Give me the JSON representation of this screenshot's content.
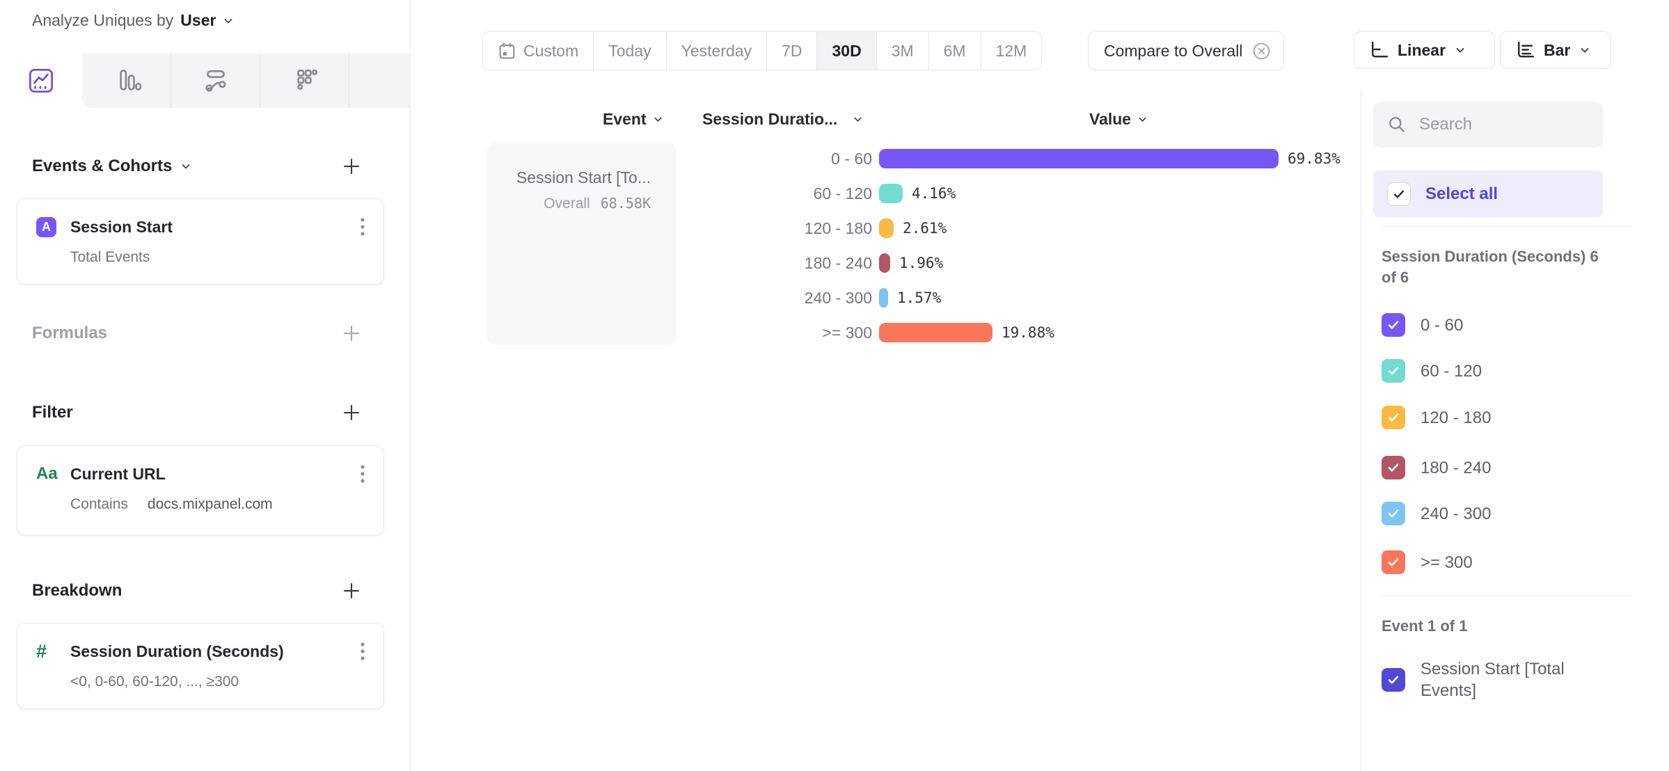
{
  "header": {
    "prefix": "Analyze Uniques by",
    "entity": "User"
  },
  "builder": {
    "events": {
      "title": "Events & Cohorts",
      "item": {
        "badge": "A",
        "title": "Session Start",
        "subtitle": "Total Events"
      }
    },
    "formulas": {
      "title": "Formulas"
    },
    "filter": {
      "title": "Filter",
      "item": {
        "badge": "Aa",
        "title": "Current URL",
        "operator": "Contains",
        "value": "docs.mixpanel.com"
      }
    },
    "breakdown": {
      "title": "Breakdown",
      "item": {
        "badge": "#",
        "title": "Session Duration (Seconds)",
        "subtitle": "<0, 0-60, 60-120, ..., ≥300"
      }
    }
  },
  "toolbar": {
    "dates": {
      "custom": "Custom",
      "today": "Today",
      "yesterday": "Yesterday",
      "d7": "7D",
      "d30": "30D",
      "m3": "3M",
      "m6": "6M",
      "m12": "12M",
      "selected": "30D"
    },
    "compare_label": "Compare to Overall",
    "scale_label": "Linear",
    "chart_type_label": "Bar"
  },
  "table": {
    "col_event": "Event",
    "col_breakdown": "Session Duratio...",
    "col_value": "Value",
    "event_cell": {
      "title": "Session Start [To...",
      "overall_label": "Overall",
      "overall_value": "68.58K"
    }
  },
  "chart_data": {
    "type": "bar",
    "orientation": "horizontal",
    "series_name": "Session Start [Total Events]",
    "overall_value": "68.58K",
    "categories": [
      "0 - 60",
      "60 - 120",
      "120 - 180",
      "180 - 240",
      "240 - 300",
      ">= 300"
    ],
    "values": [
      69.83,
      4.16,
      2.61,
      1.96,
      1.57,
      19.88
    ],
    "value_labels": [
      "69.83%",
      "4.16%",
      "2.61%",
      "1.96%",
      "1.57%",
      "19.88%"
    ],
    "colors": [
      "#7856F6",
      "#73DCD1",
      "#F6BA45",
      "#B4556A",
      "#7EC4F2",
      "#F8775A"
    ],
    "unit": "%",
    "xlim": [
      0,
      70
    ],
    "grid": false,
    "legend_position": "right"
  },
  "legend": {
    "search_placeholder": "Search",
    "select_all_label": "Select all",
    "group1": {
      "header": "Session Duration (Seconds) 6 of 6",
      "items": [
        {
          "label": "0 - 60",
          "color": "#7856F6",
          "checked": true
        },
        {
          "label": "60 - 120",
          "color": "#73DCD1",
          "checked": true
        },
        {
          "label": "120 - 180",
          "color": "#F6BA45",
          "checked": true
        },
        {
          "label": "180 - 240",
          "color": "#B4556A",
          "checked": true
        },
        {
          "label": "240 - 300",
          "color": "#7EC4F2",
          "checked": true
        },
        {
          "label": ">= 300",
          "color": "#F8775A",
          "checked": true
        }
      ]
    },
    "group2": {
      "header": "Event 1 of 1",
      "items": [
        {
          "label": "Session Start [Total Events]",
          "color": "#4F49D4",
          "checked": true
        }
      ]
    }
  }
}
